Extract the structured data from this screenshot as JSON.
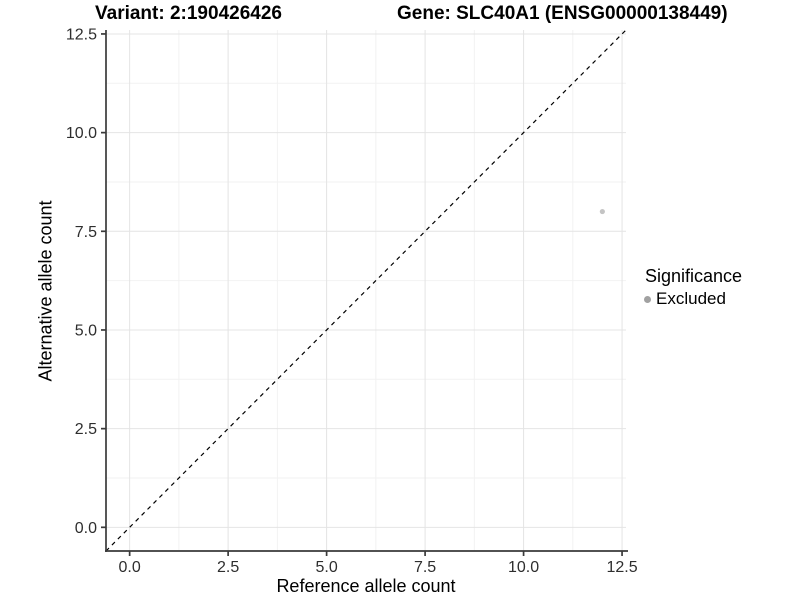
{
  "chart_data": {
    "type": "scatter",
    "titles": [
      "Variant: 2:190426426",
      "Gene: SLC40A1 (ENSG00000138449)"
    ],
    "xlabel": "Reference allele count",
    "ylabel": "Alternative allele count",
    "xlim": [
      -0.6,
      12.6
    ],
    "ylim": [
      -0.6,
      12.6
    ],
    "xticks": [
      0.0,
      2.5,
      5.0,
      7.5,
      10.0,
      12.5
    ],
    "yticks": [
      0.0,
      2.5,
      5.0,
      7.5,
      10.0,
      12.5
    ],
    "minor_ticks": [
      1.25,
      3.75,
      6.25,
      8.75,
      11.25
    ],
    "grid": "major and minor gridlines on",
    "series": [
      {
        "name": "Excluded",
        "color": "#c4c4c4",
        "points": [
          [
            12,
            8
          ]
        ]
      }
    ],
    "reference_line": {
      "type": "identity y=x diagonal",
      "style": "dashed",
      "color": "#000000"
    },
    "legend": {
      "title": "Significance",
      "position": "right",
      "items": [
        {
          "label": "Excluded",
          "color": "#a1a1a1"
        }
      ]
    }
  },
  "colors": {
    "background": "#ffffff",
    "axis": "#3a3a3a",
    "tick_label": "#2e2e2e",
    "grid_major": "#e4e4e4",
    "grid_minor": "#f2f2f2"
  }
}
